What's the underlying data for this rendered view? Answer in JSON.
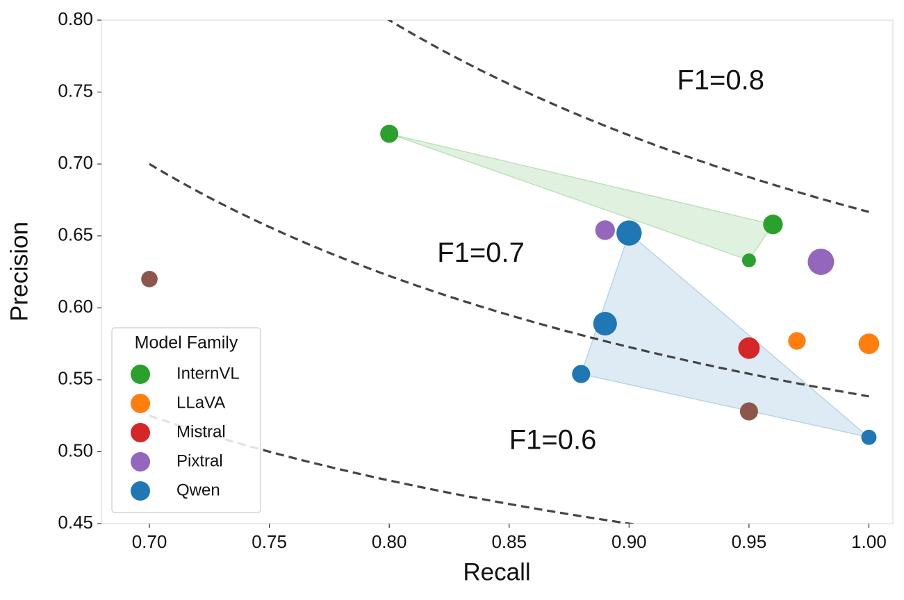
{
  "chart_data": {
    "type": "scatter",
    "xlabel": "Recall",
    "ylabel": "Precision",
    "xlim": [
      0.68,
      1.01
    ],
    "ylim": [
      0.45,
      0.8
    ],
    "xticks": [
      {
        "value": 0.7,
        "label": "0.70"
      },
      {
        "value": 0.75,
        "label": "0.75"
      },
      {
        "value": 0.8,
        "label": "0.80"
      },
      {
        "value": 0.85,
        "label": "0.85"
      },
      {
        "value": 0.9,
        "label": "0.90"
      },
      {
        "value": 0.95,
        "label": "0.95"
      },
      {
        "value": 1.0,
        "label": "1.00"
      }
    ],
    "yticks": [
      {
        "value": 0.45,
        "label": "0.45"
      },
      {
        "value": 0.5,
        "label": "0.50"
      },
      {
        "value": 0.55,
        "label": "0.55"
      },
      {
        "value": 0.6,
        "label": "0.60"
      },
      {
        "value": 0.65,
        "label": "0.65"
      },
      {
        "value": 0.7,
        "label": "0.70"
      },
      {
        "value": 0.75,
        "label": "0.75"
      },
      {
        "value": 0.8,
        "label": "0.80"
      }
    ],
    "grid": false,
    "legend_title": "Model Family",
    "legend_position": "lower-left",
    "f1_curves": [
      {
        "value": 0.8,
        "label": "F1=0.8",
        "x": 0.92,
        "y": 0.757
      },
      {
        "value": 0.7,
        "label": "F1=0.7",
        "x": 0.82,
        "y": 0.637
      },
      {
        "value": 0.6,
        "label": "F1=0.6",
        "x": 0.85,
        "y": 0.507
      }
    ],
    "series": [
      {
        "name": "InternVL",
        "color": "#2ca02c",
        "hull": true,
        "x": [
          0.8,
          0.96,
          0.95
        ],
        "values": [
          0.721,
          0.658,
          0.633
        ],
        "sizes": [
          170,
          200,
          100
        ]
      },
      {
        "name": "LLaVA",
        "color": "#ff7f0e",
        "hull": false,
        "x": [
          0.97,
          1.0
        ],
        "values": [
          0.577,
          0.575
        ],
        "sizes": [
          160,
          220
        ]
      },
      {
        "name": "Mistral",
        "color": "#d62728",
        "hull": false,
        "x": [
          0.95
        ],
        "values": [
          0.572
        ],
        "sizes": [
          240
        ]
      },
      {
        "name": "Pixtral",
        "color": "#9467bd",
        "hull": false,
        "x": [
          0.89,
          0.98
        ],
        "values": [
          0.654,
          0.632
        ],
        "sizes": [
          200,
          360
        ]
      },
      {
        "name": "Qwen",
        "color": "#1f77b4",
        "hull": true,
        "x": [
          0.9,
          0.89,
          0.88,
          1.0
        ],
        "values": [
          0.652,
          0.589,
          0.554,
          0.51
        ],
        "sizes": [
          330,
          290,
          170,
          120
        ]
      },
      {
        "color": "#8c564b",
        "hull": false,
        "x": [
          0.7,
          0.95
        ],
        "values": [
          0.62,
          0.528
        ],
        "sizes": [
          140,
          170
        ]
      }
    ]
  }
}
